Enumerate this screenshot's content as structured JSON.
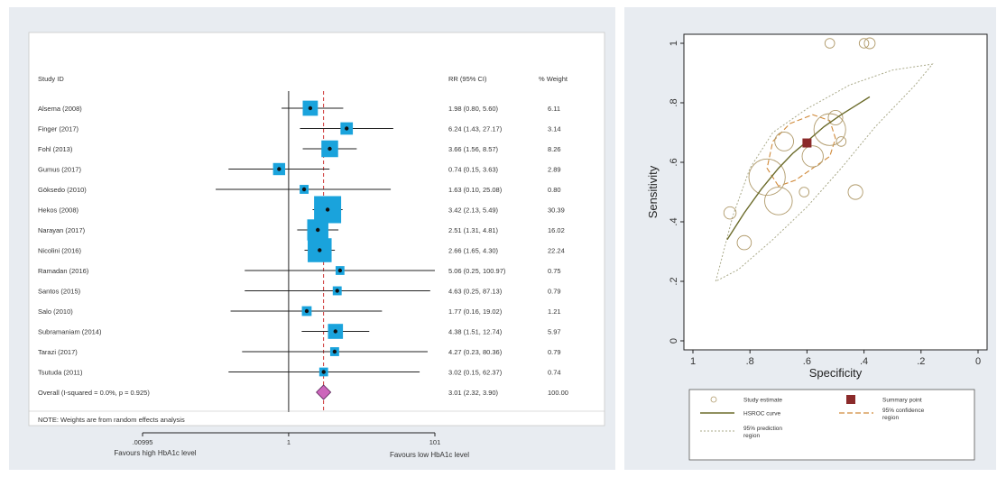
{
  "chart_data": [
    {
      "type": "forest",
      "header": {
        "study_col": "Study ID",
        "effect_col": "RR (95% CI)",
        "weight_col": "% Weight"
      },
      "x_scale": "log",
      "xlim": [
        0.00995,
        101
      ],
      "x_ticks": [
        {
          "value": 0.00995,
          "label": ".00995"
        },
        {
          "value": 1,
          "label": "1"
        },
        {
          "value": 101,
          "label": "101"
        }
      ],
      "xlabel_left": "Favours high HbA1c level",
      "xlabel_right": "Favours low HbA1c level",
      "studies": [
        {
          "name": "Alsema (2008)",
          "rr": 1.98,
          "lo": 0.8,
          "hi": 5.6,
          "ci_text": "1.98 (0.80, 5.60)",
          "weight": 6.11,
          "weight_text": "6.11"
        },
        {
          "name": "Finger (2017)",
          "rr": 6.24,
          "lo": 1.43,
          "hi": 27.17,
          "ci_text": "6.24 (1.43, 27.17)",
          "weight": 3.14,
          "weight_text": "3.14"
        },
        {
          "name": "Fohl (2013)",
          "rr": 3.66,
          "lo": 1.56,
          "hi": 8.57,
          "ci_text": "3.66 (1.56, 8.57)",
          "weight": 8.26,
          "weight_text": "8.26"
        },
        {
          "name": "Gumus (2017)",
          "rr": 0.74,
          "lo": 0.15,
          "hi": 3.63,
          "ci_text": "0.74 (0.15, 3.63)",
          "weight": 2.89,
          "weight_text": "2.89"
        },
        {
          "name": "Göksedo (2010)",
          "rr": 1.63,
          "lo": 0.1,
          "hi": 25.08,
          "ci_text": "1.63 (0.10, 25.08)",
          "weight": 0.8,
          "weight_text": "0.80"
        },
        {
          "name": "Hekos (2008)",
          "rr": 3.42,
          "lo": 2.13,
          "hi": 5.49,
          "ci_text": "3.42 (2.13, 5.49)",
          "weight": 30.39,
          "weight_text": "30.39"
        },
        {
          "name": "Narayan (2017)",
          "rr": 2.51,
          "lo": 1.31,
          "hi": 4.81,
          "ci_text": "2.51 (1.31, 4.81)",
          "weight": 16.02,
          "weight_text": "16.02"
        },
        {
          "name": "Nicolini (2016)",
          "rr": 2.66,
          "lo": 1.65,
          "hi": 4.3,
          "ci_text": "2.66 (1.65, 4.30)",
          "weight": 22.24,
          "weight_text": "22.24"
        },
        {
          "name": "Ramadan (2016)",
          "rr": 5.06,
          "lo": 0.25,
          "hi": 100.97,
          "ci_text": "5.06 (0.25, 100.97)",
          "weight": 0.75,
          "weight_text": "0.75"
        },
        {
          "name": "Santos (2015)",
          "rr": 4.63,
          "lo": 0.25,
          "hi": 87.13,
          "ci_text": "4.63 (0.25, 87.13)",
          "weight": 0.79,
          "weight_text": "0.79"
        },
        {
          "name": "Salo (2010)",
          "rr": 1.77,
          "lo": 0.16,
          "hi": 19.02,
          "ci_text": "1.77 (0.16, 19.02)",
          "weight": 1.21,
          "weight_text": "1.21"
        },
        {
          "name": "Subramaniam (2014)",
          "rr": 4.38,
          "lo": 1.51,
          "hi": 12.74,
          "ci_text": "4.38 (1.51, 12.74)",
          "weight": 5.97,
          "weight_text": "5.97"
        },
        {
          "name": "Tarazi (2017)",
          "rr": 4.27,
          "lo": 0.23,
          "hi": 80.36,
          "ci_text": "4.27 (0.23, 80.36)",
          "weight": 0.79,
          "weight_text": "0.79"
        },
        {
          "name": "Tsutuda (2011)",
          "rr": 3.02,
          "lo": 0.15,
          "hi": 62.37,
          "ci_text": "3.02 (0.15, 62.37)",
          "weight": 0.74,
          "weight_text": "0.74"
        }
      ],
      "overall": {
        "label": "Overall  (I-squared = 0.0%, p = 0.925)",
        "rr": 3.01,
        "lo": 2.32,
        "hi": 3.9,
        "ci_text": "3.01 (2.32, 3.90)",
        "weight_text": "100.00"
      },
      "note": "NOTE: Weights are from random effects analysis",
      "colors": {
        "box": "#1aa3dc",
        "diamond": "#cc66bb",
        "ref_line": "#cc3333"
      }
    },
    {
      "type": "scatter",
      "xlabel": "Specificity",
      "ylabel": "Sensitivity",
      "x_reversed": true,
      "xlim": [
        1,
        0
      ],
      "ylim": [
        0,
        1
      ],
      "x_ticks": [
        {
          "value": 1,
          "label": "1"
        },
        {
          "value": 0.8,
          "label": ".8"
        },
        {
          "value": 0.6,
          "label": ".6"
        },
        {
          "value": 0.4,
          "label": ".4"
        },
        {
          "value": 0.2,
          "label": ".2"
        },
        {
          "value": 0,
          "label": "0"
        }
      ],
      "y_ticks": [
        {
          "value": 0,
          "label": "0"
        },
        {
          "value": 0.2,
          "label": ".2"
        },
        {
          "value": 0.4,
          "label": ".4"
        },
        {
          "value": 0.6,
          "label": ".6"
        },
        {
          "value": 0.8,
          "label": ".8"
        },
        {
          "value": 1,
          "label": "1"
        }
      ],
      "study_estimates": [
        {
          "spec": 0.52,
          "sens": 1.0,
          "w": 0.8
        },
        {
          "spec": 0.4,
          "sens": 1.0,
          "w": 0.75
        },
        {
          "spec": 0.38,
          "sens": 1.0,
          "w": 1.2
        },
        {
          "spec": 0.87,
          "sens": 0.43,
          "w": 1.8
        },
        {
          "spec": 0.82,
          "sens": 0.33,
          "w": 2.8
        },
        {
          "spec": 0.74,
          "sens": 0.55,
          "w": 30.4
        },
        {
          "spec": 0.7,
          "sens": 0.47,
          "w": 16.0
        },
        {
          "spec": 0.52,
          "sens": 0.71,
          "w": 22.2
        },
        {
          "spec": 0.68,
          "sens": 0.67,
          "w": 6.1
        },
        {
          "spec": 0.5,
          "sens": 0.75,
          "w": 3.0
        },
        {
          "spec": 0.48,
          "sens": 0.67,
          "w": 0.8
        },
        {
          "spec": 0.61,
          "sens": 0.5,
          "w": 0.8
        },
        {
          "spec": 0.43,
          "sens": 0.5,
          "w": 3.1
        },
        {
          "spec": 0.58,
          "sens": 0.62,
          "w": 8.3
        }
      ],
      "summary_point": {
        "spec": 0.6,
        "sens": 0.665
      },
      "hsroc_curve": [
        [
          0.88,
          0.34
        ],
        [
          0.82,
          0.43
        ],
        [
          0.76,
          0.51
        ],
        [
          0.7,
          0.58
        ],
        [
          0.65,
          0.63
        ],
        [
          0.6,
          0.67
        ],
        [
          0.54,
          0.72
        ],
        [
          0.48,
          0.76
        ],
        [
          0.43,
          0.79
        ],
        [
          0.38,
          0.82
        ]
      ],
      "confidence_region": [
        [
          0.7,
          0.52
        ],
        [
          0.74,
          0.58
        ],
        [
          0.72,
          0.67
        ],
        [
          0.66,
          0.73
        ],
        [
          0.58,
          0.76
        ],
        [
          0.52,
          0.74
        ],
        [
          0.5,
          0.68
        ],
        [
          0.52,
          0.62
        ],
        [
          0.58,
          0.58
        ],
        [
          0.64,
          0.54
        ]
      ],
      "prediction_region": [
        [
          0.92,
          0.2
        ],
        [
          0.86,
          0.42
        ],
        [
          0.8,
          0.58
        ],
        [
          0.72,
          0.7
        ],
        [
          0.6,
          0.78
        ],
        [
          0.45,
          0.86
        ],
        [
          0.3,
          0.91
        ],
        [
          0.16,
          0.93
        ],
        [
          0.22,
          0.86
        ],
        [
          0.36,
          0.72
        ],
        [
          0.48,
          0.58
        ],
        [
          0.6,
          0.45
        ],
        [
          0.72,
          0.34
        ],
        [
          0.84,
          0.24
        ]
      ],
      "legend": [
        {
          "label": "Study estimate",
          "kind": "circle"
        },
        {
          "label": "Summary point",
          "kind": "square"
        },
        {
          "label": "HSROC curve",
          "kind": "solid"
        },
        {
          "label": "95% confidence region",
          "kind": "dash"
        },
        {
          "label": "95% prediction region",
          "kind": "dot"
        }
      ],
      "legend_placement": "bottom",
      "colors": {
        "summary": "#8b2a2a",
        "hsroc": "#6b6b2a",
        "confidence": "#d08a3a",
        "prediction": "#aaaa8a",
        "estimate": "#b09a6a"
      }
    }
  ]
}
